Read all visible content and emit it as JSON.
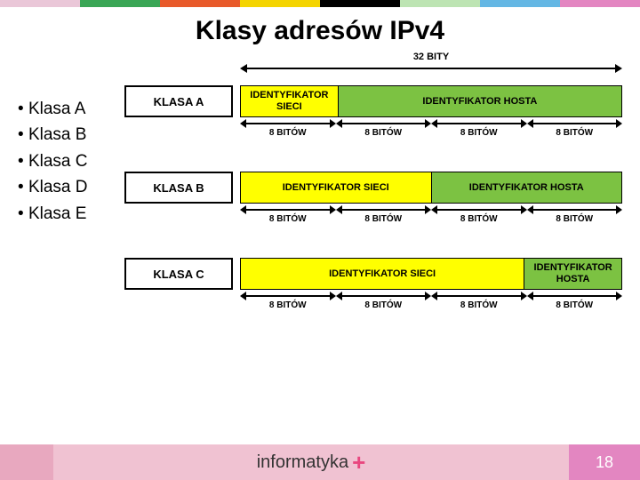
{
  "top_stripe_colors": [
    "#eac7d8",
    "#3aa655",
    "#e85a2a",
    "#f4d400",
    "#000000",
    "#bde4b3",
    "#64b7e4",
    "#e386c1"
  ],
  "title": "Klasy adresów IPv4",
  "bullets": [
    "Klasa A",
    "Klasa B",
    "Klasa C",
    "Klasa D",
    "Klasa E"
  ],
  "bits_header": "32 BITY",
  "octet_label": "8 BITÓW",
  "classes": [
    {
      "label": "KLASA  A",
      "label_bg": "#ffffff",
      "segments": [
        {
          "text": "IDENTYFIKATOR SIECI",
          "bg": "#ffff00",
          "flex": 25
        },
        {
          "text": "IDENTYFIKATOR HOSTA",
          "bg": "#7cc242",
          "flex": 75
        }
      ]
    },
    {
      "label": "KLASA  B",
      "label_bg": "#ffffff",
      "segments": [
        {
          "text": "IDENTYFIKATOR SIECI",
          "bg": "#ffff00",
          "flex": 50
        },
        {
          "text": "IDENTYFIKATOR HOSTA",
          "bg": "#7cc242",
          "flex": 50
        }
      ]
    },
    {
      "label": "KLASA  C",
      "label_bg": "#ffffff",
      "segments": [
        {
          "text": "IDENTYFIKATOR SIECI",
          "bg": "#ffff00",
          "flex": 75
        },
        {
          "text": "IDENTYFIKATOR HOSTA",
          "bg": "#7cc242",
          "flex": 25
        }
      ]
    }
  ],
  "footer": {
    "left_bg": "#e8a8bf",
    "text_bg": "#f0c2d2",
    "right_bg": "#e386c1",
    "brand": "informatyka",
    "plus": "+",
    "page": "18"
  }
}
